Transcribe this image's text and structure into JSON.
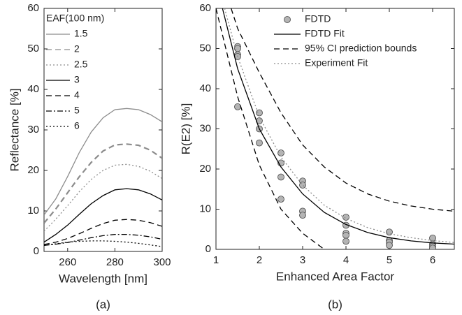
{
  "chart_data": [
    {
      "type": "line",
      "title": "(a)",
      "xlabel": "Wavelength [nm]",
      "ylabel": "Reflectance [%]",
      "legend_title": "EAF(100 nm)",
      "x": [
        250,
        255,
        260,
        265,
        270,
        275,
        280,
        285,
        290,
        295,
        300
      ],
      "xlim": [
        250,
        300
      ],
      "xticks": [
        260,
        280,
        300
      ],
      "ylim": [
        0,
        60
      ],
      "yticks": [
        0,
        10,
        20,
        30,
        40,
        50,
        60
      ],
      "series": [
        {
          "name": "1.5",
          "color": "#8c8c8c",
          "style": "solid",
          "values": [
            9,
            13,
            18.5,
            24.5,
            29.5,
            33,
            35,
            35.3,
            35,
            33.8,
            32
          ]
        },
        {
          "name": "2",
          "color": "#8c8c8c",
          "style": "dashed",
          "values": [
            7,
            10.5,
            14.5,
            18.5,
            22,
            24.8,
            26.3,
            26.5,
            26.2,
            25,
            23
          ]
        },
        {
          "name": "2.5",
          "color": "#8c8c8c",
          "style": "dotted",
          "values": [
            5,
            8,
            11.3,
            14.8,
            17.8,
            20,
            21.3,
            21.5,
            21,
            19.8,
            18
          ]
        },
        {
          "name": "3",
          "color": "#000000",
          "style": "solid",
          "values": [
            2.3,
            4.2,
            6.5,
            9.2,
            11.8,
            13.8,
            15.2,
            15.5,
            15.2,
            14.2,
            12.7
          ]
        },
        {
          "name": "4",
          "color": "#000000",
          "style": "dashed",
          "values": [
            1.7,
            2.3,
            3.2,
            4.4,
            5.7,
            6.9,
            7.7,
            7.9,
            7.7,
            7.1,
            6.2
          ]
        },
        {
          "name": "5",
          "color": "#000000",
          "style": "dashdot",
          "values": [
            1.5,
            1.8,
            2.2,
            2.8,
            3.4,
            3.9,
            4.2,
            4.2,
            4.0,
            3.6,
            3.0
          ]
        },
        {
          "name": "6",
          "color": "#000000",
          "style": "dotted",
          "values": [
            1.5,
            1.9,
            2.3,
            2.5,
            2.6,
            2.6,
            2.5,
            2.3,
            2.0,
            1.6,
            1.2
          ]
        }
      ]
    },
    {
      "type": "scatter",
      "title": "(b)",
      "xlabel": "Enhanced Area Factor",
      "ylabel": "R(E2) [%]",
      "xlim": [
        1,
        6.5
      ],
      "xticks": [
        1,
        2,
        3,
        4,
        5,
        6
      ],
      "ylim": [
        0,
        60
      ],
      "yticks": [
        0,
        10,
        20,
        30,
        40,
        50,
        60
      ],
      "series": [
        {
          "name": "FDTD",
          "color": "#b4b4b4",
          "mode": "markers",
          "x": [
            1.5,
            1.5,
            1.5,
            1.5,
            1.5,
            2,
            2,
            2,
            2,
            2.5,
            2.5,
            2.5,
            2.5,
            3,
            3,
            3,
            3,
            4,
            4,
            4,
            4,
            4,
            5,
            5,
            5,
            5,
            6,
            6,
            6,
            6
          ],
          "values": [
            50.5,
            50,
            48.5,
            48,
            35.5,
            34,
            32,
            30,
            26.5,
            24,
            21.5,
            18,
            12.5,
            17,
            16,
            9.5,
            8.5,
            8,
            6,
            4,
            3.5,
            2,
            4.3,
            2.2,
            1.8,
            1,
            2.8,
            1.3,
            0.8,
            0.3
          ]
        },
        {
          "name": "FDTD Fit",
          "color": "#000000",
          "mode": "line",
          "style": "solid",
          "x": [
            1.15,
            1.5,
            2,
            2.5,
            3,
            3.5,
            4,
            4.5,
            5,
            5.5,
            6,
            6.5
          ],
          "values": [
            60,
            45,
            30,
            20.5,
            13.8,
            9.2,
            6.2,
            4.2,
            2.9,
            2.1,
            1.6,
            1.3
          ]
        },
        {
          "name": "95% CI prediction bounds",
          "color": "#000000",
          "mode": "line",
          "style": "dashed",
          "x": [
            1.35,
            1.5,
            2,
            2.5,
            3,
            3.5,
            4,
            4.5,
            5,
            5.5,
            6,
            6.5
          ],
          "values": [
            60,
            55,
            44,
            34,
            26,
            20.5,
            16.5,
            13.8,
            12,
            10.8,
            10,
            9.5
          ]
        },
        {
          "color": "#000000",
          "mode": "line",
          "style": "dashed",
          "x": [
            1.0,
            1.5,
            2,
            2.5,
            3,
            3.5
          ],
          "values": [
            60,
            38,
            21,
            10,
            4,
            0
          ]
        },
        {
          "name": "Experiment Fit",
          "color": "#8c8c8c",
          "mode": "line",
          "style": "dotted",
          "x": [
            1.2,
            1.5,
            2,
            2.5,
            3,
            3.5,
            4,
            4.5,
            5,
            5.5,
            6,
            6.5
          ],
          "values": [
            60,
            48,
            33,
            23,
            16,
            11,
            7.7,
            5.4,
            3.9,
            2.9,
            2.2,
            1.7
          ]
        }
      ]
    }
  ]
}
